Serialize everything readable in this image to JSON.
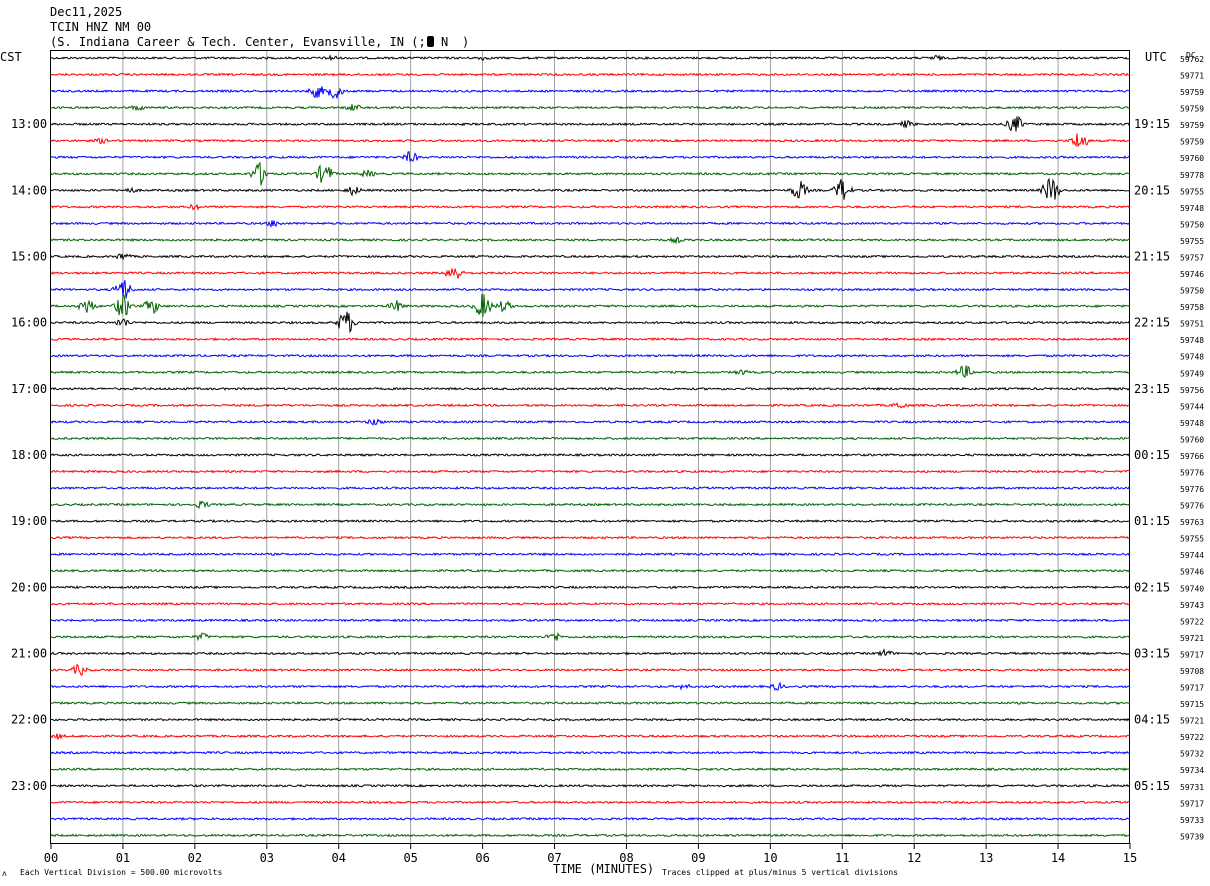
{
  "header": {
    "date": "Dec11,2025",
    "channel": "TCIN HNZ NM 00",
    "location_prefix": "(S. Indiana Career & Tech. Center, Evansville, IN (;",
    "location_mid": "N",
    "location_suffix": ")"
  },
  "left_zone": "CST",
  "right_zone": "UTC",
  "dc_label": "DC",
  "footer": {
    "vertical_division": "Each Vertical Division =  500.00 microvolts",
    "xlabel": "TIME (MINUTES)",
    "clip_note": "Traces clipped at plus/minus 5 vertical divisions"
  },
  "chart_data": {
    "type": "line",
    "title": "TCIN HNZ NM 00",
    "xlabel": "TIME (MINUTES)",
    "ylabel": "",
    "xlim": [
      0,
      15
    ],
    "x_ticks": [
      "00",
      "01",
      "02",
      "03",
      "04",
      "05",
      "06",
      "07",
      "08",
      "09",
      "10",
      "11",
      "12",
      "13",
      "14",
      "15"
    ],
    "trace_colors": [
      "#000000",
      "#ff0000",
      "#0000ff",
      "#006400"
    ],
    "traces_per_hour": 4,
    "hour_labels_left": [
      "13:00",
      "14:00",
      "15:00",
      "16:00",
      "17:00",
      "18:00",
      "19:00",
      "20:00",
      "21:00",
      "22:00",
      "23:00"
    ],
    "hour_labels_right": [
      "19:15",
      "20:15",
      "21:15",
      "22:15",
      "23:15",
      "00:15",
      "01:15",
      "02:15",
      "03:15",
      "04:15",
      "05:15"
    ],
    "first_hour_label_row": 4,
    "dc_offsets": [
      59762,
      59771,
      59759,
      59759,
      59759,
      59759,
      59760,
      59778,
      59755,
      59748,
      59750,
      59755,
      59757,
      59746,
      59750,
      59758,
      59751,
      59748,
      59748,
      59749,
      59756,
      59744,
      59748,
      59760,
      59766,
      59776,
      59776,
      59776,
      59763,
      59755,
      59744,
      59746,
      59740,
      59743,
      59722,
      59721,
      59717,
      59708,
      59717,
      59715,
      59721,
      59722,
      59732,
      59734,
      59731,
      59717,
      59733,
      59739
    ],
    "events": [
      {
        "row": 0,
        "minute": 3.9,
        "amp": 3
      },
      {
        "row": 0,
        "minute": 6.0,
        "amp": 2.5
      },
      {
        "row": 0,
        "minute": 12.3,
        "amp": 3
      },
      {
        "row": 0,
        "minute": 13.7,
        "amp": 2.5
      },
      {
        "row": 2,
        "minute": 3.7,
        "amp": 7
      },
      {
        "row": 2,
        "minute": 3.95,
        "amp": 8
      },
      {
        "row": 3,
        "minute": 1.2,
        "amp": 3
      },
      {
        "row": 3,
        "minute": 4.2,
        "amp": 4
      },
      {
        "row": 4,
        "minute": 11.9,
        "amp": 4
      },
      {
        "row": 4,
        "minute": 13.4,
        "amp": 9
      },
      {
        "row": 5,
        "minute": 0.7,
        "amp": 3
      },
      {
        "row": 5,
        "minute": 14.3,
        "amp": 10
      },
      {
        "row": 6,
        "minute": 5.0,
        "amp": 6
      },
      {
        "row": 7,
        "minute": 2.9,
        "amp": 12
      },
      {
        "row": 7,
        "minute": 3.8,
        "amp": 11
      },
      {
        "row": 7,
        "minute": 4.4,
        "amp": 4
      },
      {
        "row": 8,
        "minute": 10.4,
        "amp": 10
      },
      {
        "row": 8,
        "minute": 11.0,
        "amp": 12
      },
      {
        "row": 8,
        "minute": 13.9,
        "amp": 14
      },
      {
        "row": 8,
        "minute": 4.2,
        "amp": 5
      },
      {
        "row": 8,
        "minute": 1.1,
        "amp": 3
      },
      {
        "row": 9,
        "minute": 2.0,
        "amp": 3
      },
      {
        "row": 10,
        "minute": 3.1,
        "amp": 4
      },
      {
        "row": 11,
        "minute": 8.7,
        "amp": 3
      },
      {
        "row": 12,
        "minute": 1.0,
        "amp": 4
      },
      {
        "row": 13,
        "minute": 5.6,
        "amp": 9
      },
      {
        "row": 14,
        "minute": 1.0,
        "amp": 12
      },
      {
        "row": 15,
        "minute": 0.5,
        "amp": 8
      },
      {
        "row": 15,
        "minute": 1.0,
        "amp": 12
      },
      {
        "row": 15,
        "minute": 1.4,
        "amp": 8
      },
      {
        "row": 15,
        "minute": 6.0,
        "amp": 13
      },
      {
        "row": 15,
        "minute": 4.8,
        "amp": 6
      },
      {
        "row": 15,
        "minute": 6.3,
        "amp": 6
      },
      {
        "row": 16,
        "minute": 4.1,
        "amp": 13
      },
      {
        "row": 16,
        "minute": 1.0,
        "amp": 5
      },
      {
        "row": 19,
        "minute": 9.6,
        "amp": 3
      },
      {
        "row": 19,
        "minute": 12.7,
        "amp": 7
      },
      {
        "row": 21,
        "minute": 11.8,
        "amp": 4
      },
      {
        "row": 22,
        "minute": 4.5,
        "amp": 4
      },
      {
        "row": 27,
        "minute": 2.1,
        "amp": 4
      },
      {
        "row": 35,
        "minute": 2.1,
        "amp": 4
      },
      {
        "row": 35,
        "minute": 7.0,
        "amp": 5
      },
      {
        "row": 36,
        "minute": 11.6,
        "amp": 4
      },
      {
        "row": 37,
        "minute": 0.4,
        "amp": 6
      },
      {
        "row": 38,
        "minute": 8.8,
        "amp": 3
      },
      {
        "row": 38,
        "minute": 10.1,
        "amp": 4
      },
      {
        "row": 41,
        "minute": 0.1,
        "amp": 3
      }
    ]
  }
}
